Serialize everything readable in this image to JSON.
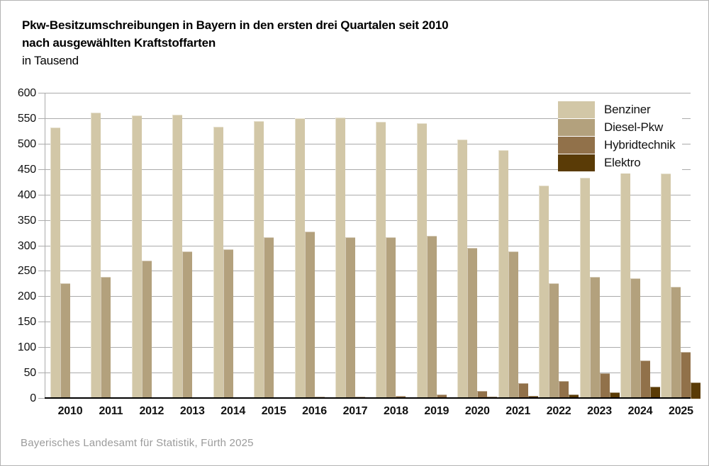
{
  "title": {
    "line1": "Pkw-Besitzumschreibungen in Bayern in den ersten drei Quartalen seit 2010",
    "line2": "nach ausgewählten Kraftstoffarten",
    "subtitle": "in Tausend"
  },
  "footer": {
    "source": "Bayerisches Landesamt für Statistik, Fürth 2025"
  },
  "colors": {
    "benziner": "#d2c7a7",
    "diesel": "#b3a17d",
    "hybrid": "#91714a",
    "elektro": "#5a3b06",
    "gridline": "#ababab",
    "baseline": "#000000",
    "source_text": "#9b9b9b"
  },
  "chart_data": {
    "type": "bar",
    "title": "Pkw-Besitzumschreibungen in Bayern in den ersten drei Quartalen seit 2010 nach ausgewählten Kraftstoffarten",
    "units": "in Tausend",
    "categories": [
      "2010",
      "2011",
      "2012",
      "2013",
      "2014",
      "2015",
      "2016",
      "2017",
      "2018",
      "2019",
      "2020",
      "2021",
      "2022",
      "2023",
      "2024",
      "2025"
    ],
    "series": [
      {
        "name": "Benziner",
        "color": "#d2c7a7",
        "values": [
          533,
          563,
          557,
          558,
          535,
          546,
          551,
          553,
          545,
          541,
          510,
          489,
          419,
          434,
          453,
          442
        ]
      },
      {
        "name": "Diesel-Pkw",
        "color": "#b3a17d",
        "values": [
          227,
          240,
          271,
          290,
          294,
          318,
          328,
          317,
          317,
          320,
          297,
          289,
          227,
          239,
          237,
          220
        ]
      },
      {
        "name": "Hybridtechnik",
        "color": "#91714a",
        "values": [
          1,
          1,
          1,
          1,
          2,
          3,
          4,
          4,
          5,
          9,
          15,
          30,
          35,
          50,
          75,
          92
        ]
      },
      {
        "name": "Elektro",
        "color": "#5a3b06",
        "values": [
          0,
          0,
          0,
          0,
          1,
          1,
          1,
          1,
          2,
          3,
          4,
          6,
          9,
          13,
          23,
          32
        ]
      }
    ],
    "ylim": [
      0,
      600
    ],
    "yticks": [
      0,
      50,
      100,
      150,
      200,
      250,
      300,
      350,
      400,
      450,
      500,
      550,
      600
    ],
    "xlabel": "",
    "ylabel": "",
    "grid": true,
    "legend_position": "top-right"
  }
}
